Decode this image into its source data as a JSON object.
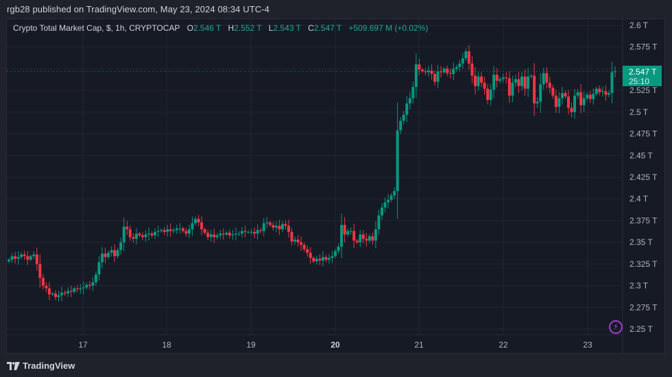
{
  "header": {
    "publish_line": "rgb28 published on TradingView.com, May 23, 2024 08:34 UTC-4"
  },
  "legend": {
    "symbol_desc": "Crypto Total Market Cap, $, 1h, CRYPTOCAP",
    "open_label": "O",
    "open_value": "2.546 T",
    "high_label": "H",
    "high_value": "2.552 T",
    "low_label": "L",
    "low_value": "2.543 T",
    "close_label": "C",
    "close_value": "2.547 T",
    "change": "+509.697 M (+0.02%)"
  },
  "price_label": {
    "value": "2.547 T",
    "countdown": "25:10"
  },
  "footer": {
    "brand": "TradingView"
  },
  "icons": {
    "alert": "lightning-bolt-icon",
    "logo": "tradingview-logo-icon"
  },
  "colors": {
    "up": "#089981",
    "down": "#f23645",
    "grid": "#232632",
    "axis_text": "#b2b5be",
    "bg": "#161a25",
    "frame": "#1f222b",
    "alert": "#9c3fc9"
  },
  "chart_data": {
    "type": "candlestick",
    "title": "Crypto Total Market Cap, $, 1h, CRYPTOCAP",
    "xlabel": "",
    "ylabel": "",
    "ylim": [
      2.25,
      2.6
    ],
    "yticks": [
      "2.6 T",
      "2.575 T",
      "2.55 T",
      "2.525 T",
      "2.5 T",
      "2.475 T",
      "2.45 T",
      "2.425 T",
      "2.4 T",
      "2.375 T",
      "2.35 T",
      "2.325 T",
      "2.3 T",
      "2.275 T",
      "2.25 T"
    ],
    "ytick_values": [
      2.6,
      2.575,
      2.55,
      2.525,
      2.5,
      2.475,
      2.45,
      2.425,
      2.4,
      2.375,
      2.35,
      2.325,
      2.3,
      2.275,
      2.25
    ],
    "xticks": [
      "17",
      "18",
      "19",
      "20",
      "21",
      "22",
      "23"
    ],
    "xtick_bold": [
      "20"
    ],
    "interval": "1h",
    "units": "T (USD trillions)",
    "last_price": 2.547,
    "closes": [
      2.33,
      2.334,
      2.331,
      2.333,
      2.336,
      2.334,
      2.33,
      2.334,
      2.336,
      2.325,
      2.309,
      2.3,
      2.297,
      2.29,
      2.291,
      2.287,
      2.289,
      2.292,
      2.291,
      2.294,
      2.293,
      2.297,
      2.296,
      2.297,
      2.298,
      2.301,
      2.3,
      2.304,
      2.313,
      2.327,
      2.337,
      2.333,
      2.338,
      2.341,
      2.334,
      2.341,
      2.35,
      2.368,
      2.365,
      2.356,
      2.354,
      2.36,
      2.358,
      2.356,
      2.359,
      2.36,
      2.358,
      2.362,
      2.363,
      2.364,
      2.362,
      2.365,
      2.363,
      2.364,
      2.366,
      2.366,
      2.363,
      2.36,
      2.365,
      2.372,
      2.377,
      2.373,
      2.365,
      2.361,
      2.356,
      2.359,
      2.356,
      2.358,
      2.36,
      2.359,
      2.361,
      2.358,
      2.359,
      2.36,
      2.36,
      2.363,
      2.362,
      2.362,
      2.362,
      2.36,
      2.364,
      2.363,
      2.372,
      2.373,
      2.37,
      2.367,
      2.369,
      2.365,
      2.371,
      2.369,
      2.362,
      2.351,
      2.353,
      2.35,
      2.347,
      2.342,
      2.338,
      2.332,
      2.328,
      2.331,
      2.329,
      2.333,
      2.33,
      2.332,
      2.334,
      2.34,
      2.345,
      2.37,
      2.359,
      2.363,
      2.363,
      2.352,
      2.35,
      2.359,
      2.354,
      2.352,
      2.357,
      2.352,
      2.365,
      2.381,
      2.39,
      2.396,
      2.399,
      2.404,
      2.409,
      2.479,
      2.49,
      2.497,
      2.51,
      2.516,
      2.529,
      2.555,
      2.549,
      2.547,
      2.546,
      2.548,
      2.544,
      2.535,
      2.547,
      2.546,
      2.55,
      2.545,
      2.544,
      2.55,
      2.552,
      2.556,
      2.562,
      2.57,
      2.556,
      2.542,
      2.53,
      2.541,
      2.534,
      2.527,
      2.514,
      2.526,
      2.543,
      2.536,
      2.538,
      2.54,
      2.539,
      2.519,
      2.534,
      2.538,
      2.53,
      2.541,
      2.527,
      2.541,
      2.542,
      2.51,
      2.512,
      2.532,
      2.545,
      2.534,
      2.528,
      2.519,
      2.506,
      2.516,
      2.522,
      2.518,
      2.505,
      2.5,
      2.519,
      2.523,
      2.508,
      2.516,
      2.52,
      2.515,
      2.521,
      2.527,
      2.523,
      2.524,
      2.52,
      2.522,
      2.546,
      2.547
    ]
  }
}
